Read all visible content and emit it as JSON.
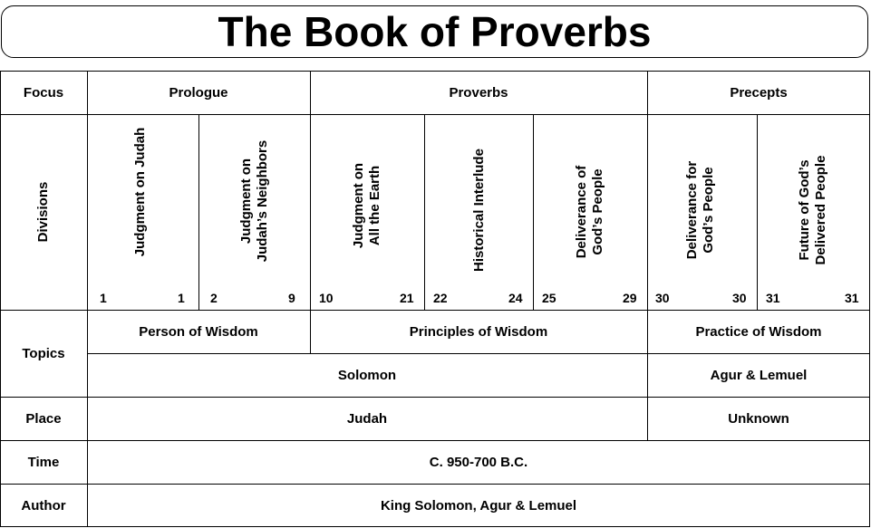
{
  "title": "The Book of Proverbs",
  "row_labels": {
    "focus": "Focus",
    "divisions": "Divisions",
    "topics": "Topics",
    "place": "Place",
    "time": "Time",
    "author": "Author"
  },
  "focus": [
    "Prologue",
    "Proverbs",
    "Precepts"
  ],
  "divisions": [
    {
      "lines": [
        "Judgment on Judah"
      ],
      "start": "1",
      "end": "1"
    },
    {
      "lines": [
        "Judgment on",
        "Judah’s Neighbors"
      ],
      "start": "2",
      "end": "9"
    },
    {
      "lines": [
        "Judgment on",
        "All the Earth"
      ],
      "start": "10",
      "end": "21"
    },
    {
      "lines": [
        "Historical Interlude"
      ],
      "start": "22",
      "end": "24"
    },
    {
      "lines": [
        "Deliverance of",
        "God’s People"
      ],
      "start": "25",
      "end": "29"
    },
    {
      "lines": [
        "Deliverance for",
        "God’s People"
      ],
      "start": "30",
      "end": "30"
    },
    {
      "lines": [
        "Future of God’s",
        "Delivered People"
      ],
      "start": "31",
      "end": "31"
    }
  ],
  "topics": {
    "row1": [
      "Person of Wisdom",
      "Principles of Wisdom",
      "Practice of Wisdom"
    ],
    "row2": [
      "Solomon",
      "Agur & Lemuel"
    ]
  },
  "place": [
    "Judah",
    "Unknown"
  ],
  "time": "C. 950-700 B.C.",
  "author": "King Solomon, Agur & Lemuel"
}
